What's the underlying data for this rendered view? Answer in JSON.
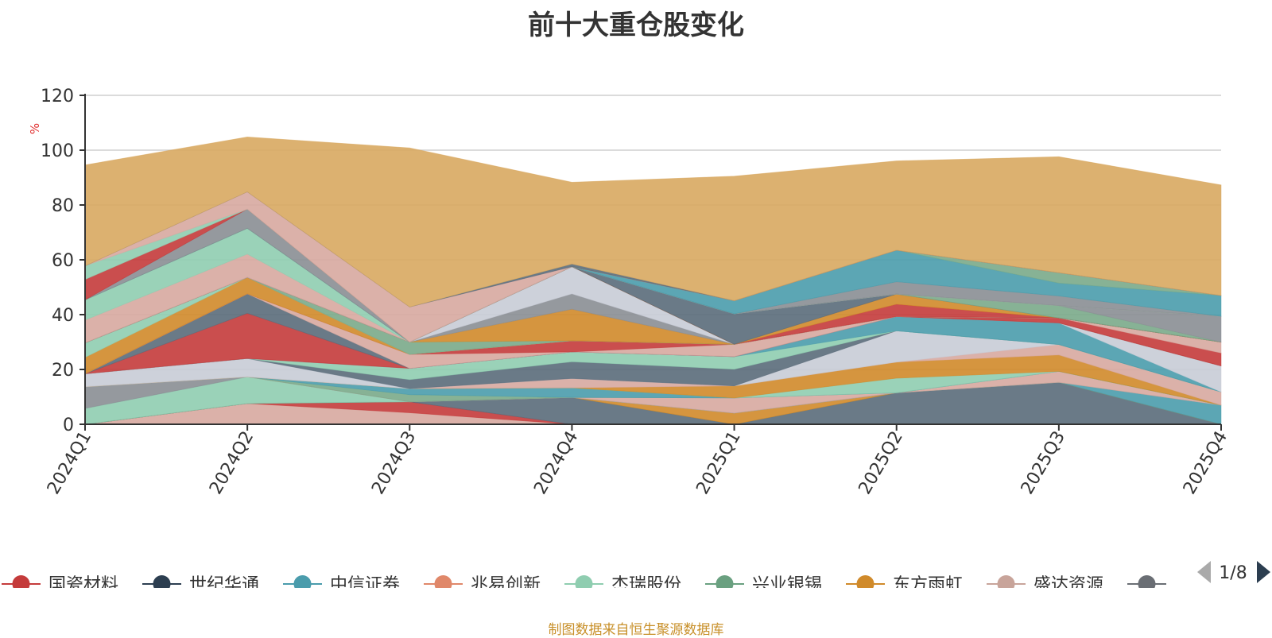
{
  "title": "前十大重仓股变化",
  "source": "制图数据来自恒生聚源数据库",
  "legend_pager": "1/8",
  "chart_data": {
    "type": "area",
    "stacked": true,
    "title": "前十大重仓股变化",
    "ylabel": "%",
    "xlabel": "",
    "ylim": [
      0,
      120
    ],
    "yticks": [
      0,
      20,
      40,
      60,
      80,
      100,
      120
    ],
    "grid": true,
    "categories": [
      "2024Q1",
      "2024Q2",
      "2024Q3",
      "2024Q4",
      "2025Q1",
      "2025Q2",
      "2025Q3",
      "2025Q4"
    ],
    "legend_position": "bottom",
    "series": [
      {
        "name": "",
        "color": "#d7a9a0",
        "values": [
          0,
          7.6,
          4.2,
          0,
          0,
          0,
          0,
          0
        ]
      },
      {
        "name": "",
        "color": "#c43b3b",
        "values": [
          0,
          0,
          4,
          0,
          0,
          0,
          0,
          0
        ]
      },
      {
        "name": "",
        "color": "#5a6b7a",
        "values": [
          0,
          0,
          0,
          9.8,
          0,
          11.5,
          15.3,
          0
        ]
      },
      {
        "name": "",
        "color": "#d08a2a",
        "values": [
          0,
          0,
          0,
          0,
          4.1,
          0,
          0,
          0
        ]
      },
      {
        "name": "",
        "color": "#4a9cac",
        "values": [
          0,
          0,
          0,
          0,
          0,
          0,
          0,
          7
        ]
      },
      {
        "name": "",
        "color": "#8fcdb0",
        "values": [
          5.8,
          9.7,
          0,
          0,
          0,
          0,
          0,
          0
        ]
      },
      {
        "name": "",
        "color": "#8a8e94",
        "values": [
          7.9,
          0,
          0,
          0,
          0,
          0,
          0,
          0
        ]
      },
      {
        "name": "",
        "color": "#d7a9a0",
        "values": [
          0,
          0,
          0,
          0,
          5.5,
          0,
          4,
          0
        ]
      },
      {
        "name": "",
        "color": "#7aaa8a",
        "values": [
          0,
          0,
          2.6,
          0,
          0,
          0,
          0,
          0
        ]
      },
      {
        "name": "",
        "color": "#4a9cac",
        "values": [
          0,
          0,
          2.2,
          3.5,
          0,
          0,
          0,
          0
        ]
      },
      {
        "name": "",
        "color": "#8fcdb0",
        "values": [
          0,
          0,
          0,
          0,
          0,
          5.3,
          0,
          0
        ]
      },
      {
        "name": "",
        "color": "#d08a2a",
        "values": [
          0,
          0,
          0,
          0,
          4.4,
          5.9,
          6,
          0
        ]
      },
      {
        "name": "",
        "color": "#d7a9a0",
        "values": [
          0,
          0,
          0,
          3.4,
          0,
          0,
          3.8,
          4.8
        ]
      },
      {
        "name": "",
        "color": "#c8ccd6",
        "values": [
          4.7,
          6.7,
          0,
          0,
          0,
          11.4,
          0,
          0
        ]
      },
      {
        "name": "",
        "color": "#5a6b7a",
        "values": [
          0,
          0,
          3.3,
          6.1,
          6.1,
          0,
          0,
          0
        ]
      },
      {
        "name": "",
        "color": "#8fcdb0",
        "values": [
          0,
          0,
          4.1,
          3.6,
          4.6,
          0,
          0,
          0
        ]
      },
      {
        "name": "",
        "color": "#4a9cac",
        "values": [
          0,
          0,
          0,
          0,
          0,
          5.2,
          7.9,
          0
        ]
      },
      {
        "name": "",
        "color": "#c8ccd6",
        "values": [
          0,
          0,
          0,
          0,
          0,
          0,
          0,
          9.5
        ]
      },
      {
        "name": "",
        "color": "#c43b3b",
        "values": [
          0,
          16.5,
          0,
          0,
          0,
          0,
          0,
          0
        ]
      },
      {
        "name": "",
        "color": "#5a6b7a",
        "values": [
          0,
          7.1,
          0,
          0,
          0,
          0,
          0,
          0
        ]
      },
      {
        "name": "",
        "color": "#d7a9a0",
        "values": [
          0,
          0,
          5.1,
          0,
          4.5,
          0,
          0,
          0
        ]
      },
      {
        "name": "",
        "color": "#c43b3b",
        "values": [
          0,
          0,
          0,
          4.1,
          0,
          0,
          1.8,
          4.7
        ]
      },
      {
        "name": "",
        "color": "#d7a9a0",
        "values": [
          0,
          0,
          0,
          0,
          0,
          0,
          0,
          4
        ]
      },
      {
        "name": "",
        "color": "#d08a2a",
        "values": [
          6,
          6,
          0,
          0,
          0,
          0,
          0,
          0
        ]
      },
      {
        "name": "",
        "color": "#8fcdb0",
        "values": [
          5.3,
          0,
          0,
          0,
          0,
          0,
          0,
          0
        ]
      },
      {
        "name": "",
        "color": "#7aaa8a",
        "values": [
          0,
          0,
          4.5,
          0,
          0,
          0,
          0,
          0
        ]
      },
      {
        "name": "",
        "color": "#d08a2a",
        "values": [
          0,
          0,
          0,
          11.5,
          0,
          0,
          0,
          0
        ]
      },
      {
        "name": "",
        "color": "#8a8e94",
        "values": [
          0,
          0,
          0,
          5.6,
          0,
          0,
          0,
          0
        ]
      },
      {
        "name": "",
        "color": "#c8ccd6",
        "values": [
          0,
          0,
          0,
          9.9,
          0,
          0,
          0,
          0
        ]
      },
      {
        "name": "",
        "color": "#c43b3b",
        "values": [
          0,
          0,
          0,
          0,
          0,
          4.5,
          0,
          0
        ]
      },
      {
        "name": "",
        "color": "#d08a2a",
        "values": [
          0,
          0,
          0,
          0,
          0,
          3.7,
          0,
          0
        ]
      },
      {
        "name": "",
        "color": "#5a6b7a",
        "values": [
          0,
          0,
          0,
          0,
          11.1,
          0,
          0,
          0
        ]
      },
      {
        "name": "",
        "color": "#7aaa8a",
        "values": [
          0,
          0,
          0,
          0,
          0,
          0,
          4.5,
          0
        ]
      },
      {
        "name": "",
        "color": "#8a8e94",
        "values": [
          0,
          0,
          0,
          0,
          0,
          0,
          0,
          9.4
        ]
      },
      {
        "name": "",
        "color": "#d7a9a0",
        "values": [
          8.3,
          8.5,
          0,
          0,
          0,
          0,
          0,
          0
        ]
      },
      {
        "name": "",
        "color": "#8fcdb0",
        "values": [
          7.4,
          9.4,
          0,
          0,
          0,
          0,
          0,
          0
        ]
      },
      {
        "name": "",
        "color": "#8a8e94",
        "values": [
          0,
          0,
          0,
          0,
          0,
          4.5,
          3.5,
          0
        ]
      },
      {
        "name": "",
        "color": "#4a9cac",
        "values": [
          0,
          0,
          0,
          0,
          4.8,
          11.5,
          4.7,
          7.6
        ]
      },
      {
        "name": "",
        "color": "#7aaa8a",
        "values": [
          0,
          0,
          0,
          0,
          0,
          0,
          3.8,
          0
        ]
      },
      {
        "name": "",
        "color": "#8a8e94",
        "values": [
          0,
          7,
          0,
          0,
          0,
          0,
          0,
          0
        ]
      },
      {
        "name": "",
        "color": "#c43b3b",
        "values": [
          7.4,
          0,
          0,
          0,
          0,
          0,
          0,
          0
        ]
      },
      {
        "name": "",
        "color": "#8fcdb0",
        "values": [
          5,
          0,
          0,
          0,
          0,
          0,
          0,
          0
        ]
      },
      {
        "name": "",
        "color": "#d7a9a0",
        "values": [
          0,
          6.3,
          12.8,
          0,
          0,
          0,
          0,
          0
        ]
      },
      {
        "name": "",
        "color": "#5a6b7a",
        "values": [
          0,
          0,
          0,
          1,
          0,
          0,
          0,
          0
        ]
      },
      {
        "name": "",
        "color": "#d8a860",
        "values": [
          36.8,
          20,
          58,
          29.8,
          45.4,
          32.6,
          42.3,
          40.3
        ]
      }
    ],
    "legend": [
      {
        "name": "国瓷材料",
        "color": "#c43b3b"
      },
      {
        "name": "世纪华通",
        "color": "#2c3e50"
      },
      {
        "name": "中信证券",
        "color": "#4a9cac"
      },
      {
        "name": "兆易创新",
        "color": "#e0886a"
      },
      {
        "name": "杰瑞股份",
        "color": "#8fcdb0"
      },
      {
        "name": "兴业银锡",
        "color": "#6aa080"
      },
      {
        "name": "东方雨虹",
        "color": "#d08a2a"
      },
      {
        "name": "盛达资源",
        "color": "#c8a49a"
      },
      {
        "name": "",
        "color": "#6a6e74"
      }
    ]
  }
}
